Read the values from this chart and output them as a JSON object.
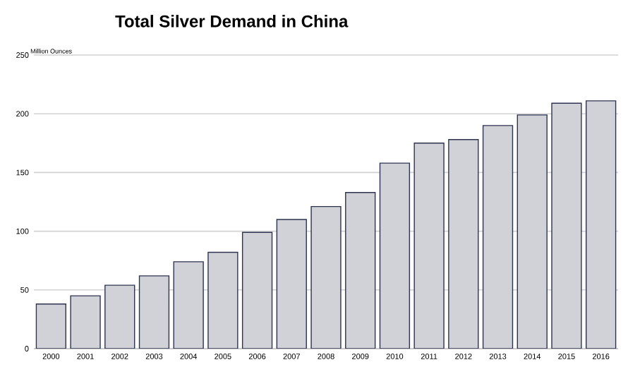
{
  "chart_data": {
    "type": "bar",
    "title": "Total Silver Demand in China",
    "ylabel": "Million Ounces",
    "categories": [
      "2000",
      "2001",
      "2002",
      "2003",
      "2004",
      "2005",
      "2006",
      "2007",
      "2008",
      "2009",
      "2010",
      "2011",
      "2012",
      "2013",
      "2014",
      "2015",
      "2016"
    ],
    "values": [
      38,
      45,
      54,
      62,
      74,
      82,
      99,
      110,
      121,
      133,
      158,
      175,
      178,
      190,
      199,
      209,
      211
    ],
    "color": "#d0d2d8",
    "ylim": [
      0,
      250
    ],
    "yticks": [
      0,
      50,
      100,
      150,
      200,
      250
    ],
    "grid": "y"
  }
}
